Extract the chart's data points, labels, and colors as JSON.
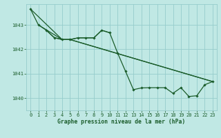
{
  "title": "Graphe pression niveau de la mer (hPa)",
  "bg_color": "#c0e8e4",
  "grid_color": "#96cccc",
  "line_color": "#1a5c2a",
  "xlim": [
    -0.5,
    23.5
  ],
  "ylim": [
    1039.5,
    1043.85
  ],
  "yticks": [
    1040,
    1041,
    1042,
    1043
  ],
  "xticks": [
    0,
    1,
    2,
    3,
    4,
    5,
    6,
    7,
    8,
    9,
    10,
    11,
    12,
    13,
    14,
    15,
    16,
    17,
    18,
    19,
    20,
    21,
    22,
    23
  ],
  "line1_x": [
    0,
    1,
    2,
    3,
    4,
    5,
    6,
    7,
    8,
    9,
    10,
    11,
    12,
    13,
    14,
    15,
    16,
    17,
    18,
    19,
    20,
    21,
    22,
    23
  ],
  "line1_y": [
    1043.65,
    1043.0,
    1042.78,
    1042.48,
    1042.4,
    1042.4,
    1042.47,
    1042.47,
    1042.47,
    1042.78,
    1042.68,
    1041.85,
    1041.1,
    1040.35,
    1040.42,
    1040.43,
    1040.43,
    1040.43,
    1040.2,
    1040.43,
    1040.07,
    1040.1,
    1040.55,
    1040.68
  ],
  "line2_x": [
    1,
    4,
    5,
    23
  ],
  "line2_y": [
    1043.0,
    1042.4,
    1042.4,
    1040.68
  ],
  "line3_x": [
    0,
    4,
    5,
    23
  ],
  "line3_y": [
    1043.65,
    1042.4,
    1042.4,
    1040.68
  ],
  "line4_x": [
    2,
    3,
    4,
    5,
    6,
    7,
    8,
    9,
    10
  ],
  "line4_y": [
    1042.78,
    1042.48,
    1042.4,
    1042.4,
    1042.47,
    1042.47,
    1042.47,
    1042.78,
    1042.68
  ]
}
